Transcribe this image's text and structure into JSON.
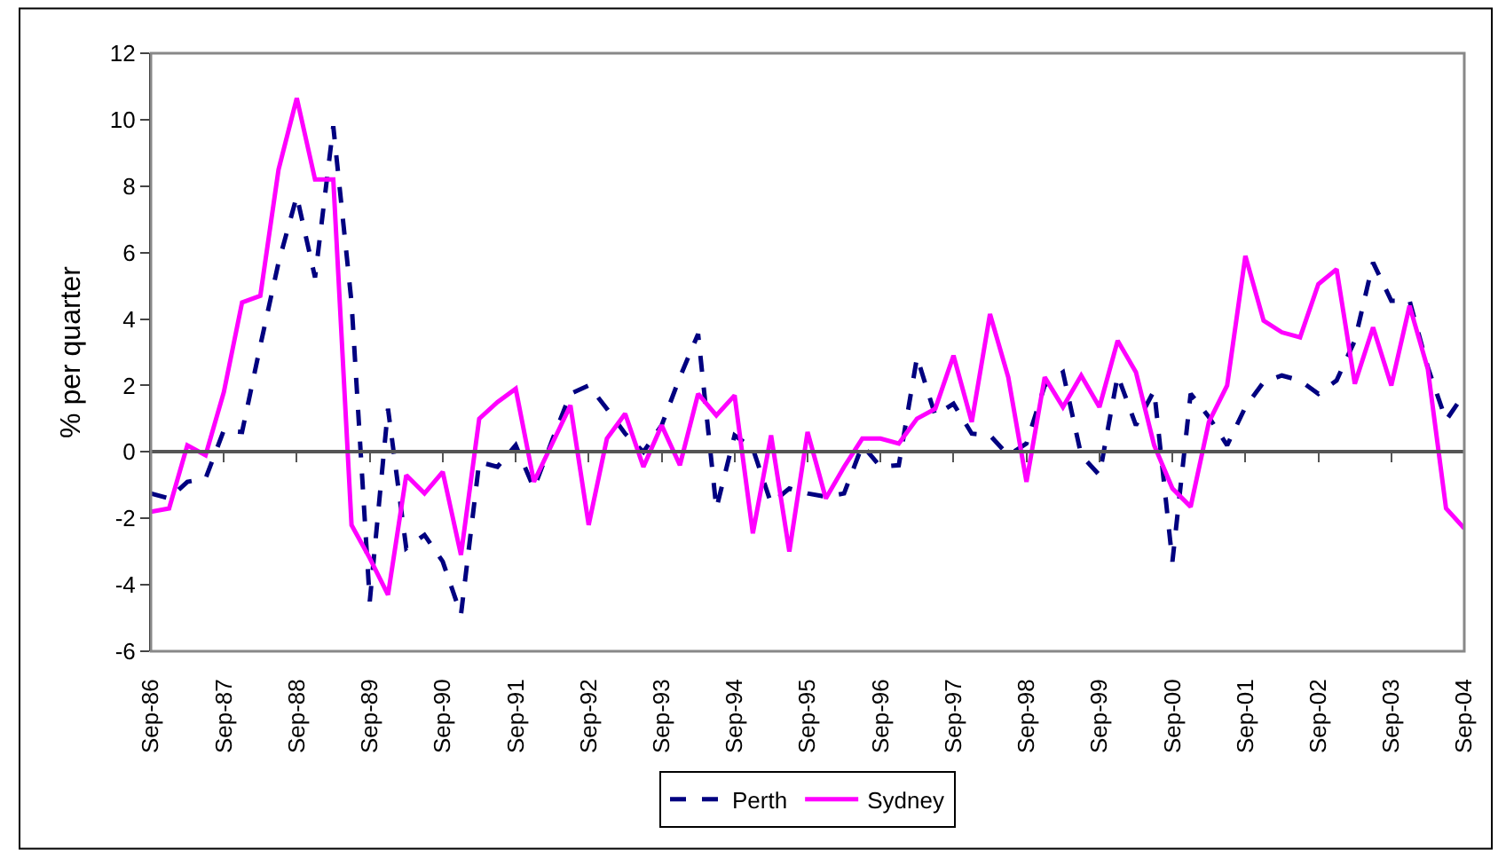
{
  "chart_data": {
    "type": "line",
    "ylabel": "% per quarter",
    "categories": [
      "Sep-86",
      null,
      null,
      null,
      "Sep-87",
      null,
      null,
      null,
      "Sep-88",
      null,
      null,
      null,
      "Sep-89",
      null,
      null,
      null,
      "Sep-90",
      null,
      null,
      null,
      "Sep-91",
      null,
      null,
      null,
      "Sep-92",
      null,
      null,
      null,
      "Sep-93",
      null,
      null,
      null,
      "Sep-94",
      null,
      null,
      null,
      "Sep-95",
      null,
      null,
      null,
      "Sep-96",
      null,
      null,
      null,
      "Sep-97",
      null,
      null,
      null,
      "Sep-98",
      null,
      null,
      null,
      "Sep-99",
      null,
      null,
      null,
      "Sep-00",
      null,
      null,
      null,
      "Sep-01",
      null,
      null,
      null,
      "Sep-02",
      null,
      null,
      null,
      "Sep-03",
      null,
      null,
      null,
      "Sep-04"
    ],
    "series": [
      {
        "name": "Perth",
        "color": "#000080",
        "line_style": "dashed",
        "values": [
          -1.25,
          -1.4,
          -0.9,
          -0.8,
          0.65,
          0.6,
          3.2,
          5.7,
          7.7,
          5.25,
          9.8,
          4.5,
          -4.5,
          1.3,
          -2.9,
          -2.5,
          -3.3,
          -4.9,
          -0.3,
          -0.45,
          0.2,
          -1.1,
          0.35,
          1.75,
          2.0,
          1.3,
          0.55,
          0,
          0.8,
          2.25,
          3.55,
          -1.7,
          0.5,
          0.1,
          -1.55,
          -1.1,
          -1.25,
          -1.35,
          -1.25,
          0.2,
          -0.45,
          -0.4,
          2.85,
          1.1,
          1.45,
          0.55,
          0.5,
          -0.1,
          0.25,
          2.0,
          2.4,
          -0.1,
          -0.7,
          2.3,
          0.8,
          1.85,
          -3.3,
          1.75,
          1.05,
          0.2,
          1.35,
          2.1,
          2.3,
          2.15,
          1.75,
          2.15,
          3.35,
          5.7,
          4.55,
          4.55,
          2.55,
          0.95,
          1.75
        ]
      },
      {
        "name": "Sydney",
        "color": "#ff00ff",
        "line_style": "solid",
        "values": [
          -1.8,
          -1.7,
          0.2,
          -0.1,
          1.8,
          4.5,
          4.7,
          8.5,
          10.65,
          8.2,
          8.2,
          -2.2,
          -3.2,
          -4.3,
          -0.7,
          -1.25,
          -0.6,
          -3.1,
          1.0,
          1.5,
          1.9,
          -0.9,
          0.25,
          1.4,
          -2.2,
          0.4,
          1.15,
          -0.45,
          0.8,
          -0.4,
          1.75,
          1.1,
          1.7,
          -2.45,
          0.5,
          -3.0,
          0.6,
          -1.4,
          -0.45,
          0.4,
          0.4,
          0.25,
          1.0,
          1.3,
          2.9,
          0.9,
          4.15,
          2.25,
          -0.9,
          2.25,
          1.35,
          2.3,
          1.35,
          3.35,
          2.4,
          0.2,
          -1.1,
          -1.65,
          0.9,
          2.0,
          5.9,
          3.95,
          3.6,
          3.45,
          5.05,
          5.5,
          2.05,
          3.75,
          2.0,
          4.4,
          2.5,
          -1.7,
          -2.3
        ]
      }
    ],
    "ylim": [
      -6,
      12
    ],
    "yticks": [
      -6,
      -4,
      -2,
      0,
      2,
      4,
      6,
      8,
      10,
      12
    ],
    "legend": "bottom",
    "marker": "none"
  }
}
